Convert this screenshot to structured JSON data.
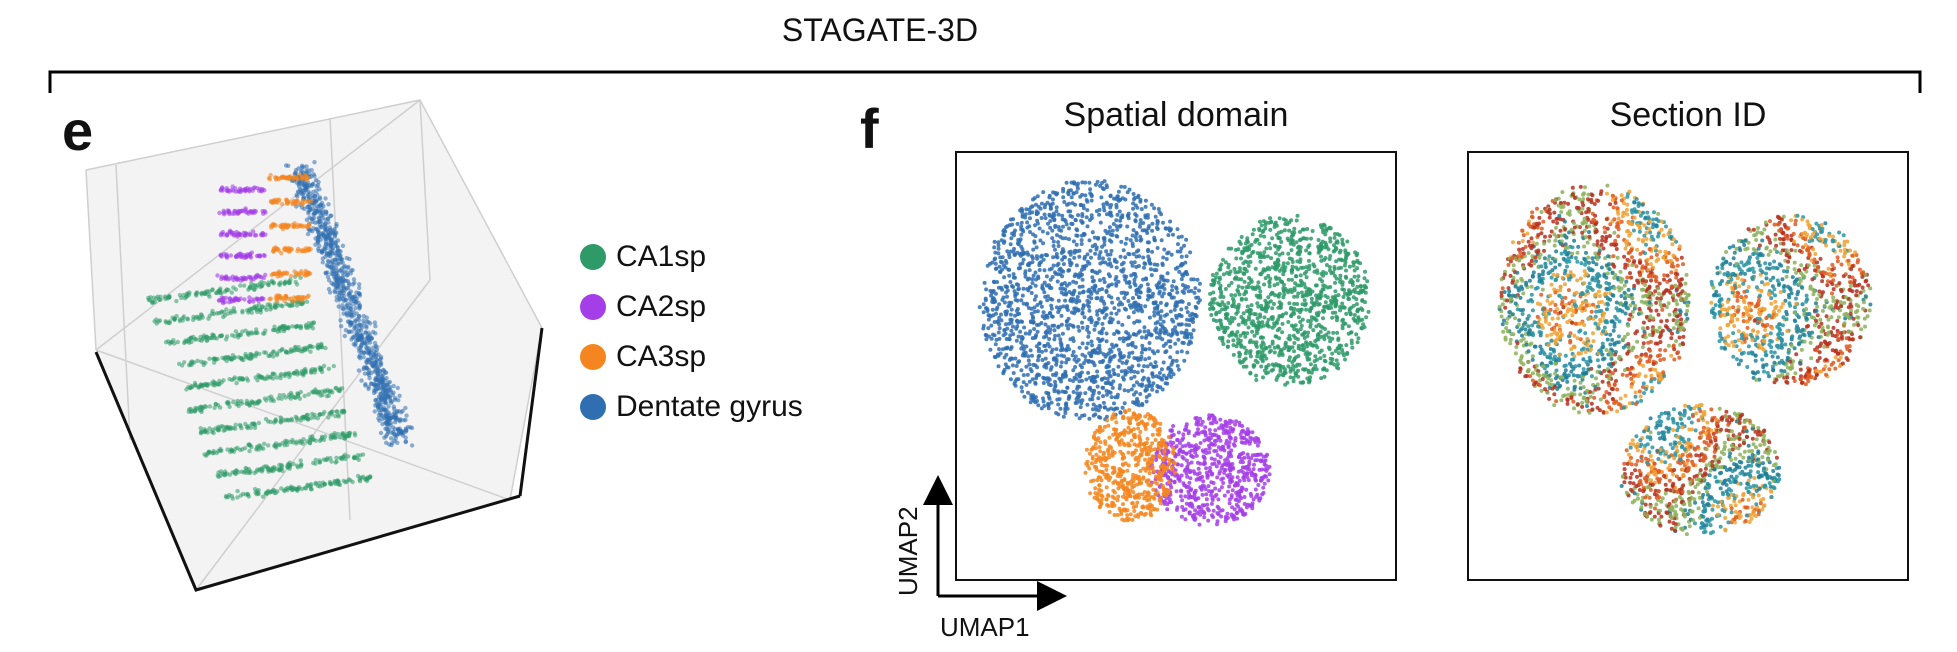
{
  "figure": {
    "title": "STAGATE-3D",
    "panel_e": "e",
    "panel_f": "f"
  },
  "chart_data": [
    {
      "type": "scatter",
      "panel": "e",
      "description_kind": "3d-scatter",
      "legend": [
        "CA1sp",
        "CA2sp",
        "CA3sp",
        "Dentate gyrus"
      ],
      "colors": {
        "CA1sp": "#2e9a68",
        "CA2sp": "#a43ee8",
        "CA3sp": "#f5861f",
        "Dentate gyrus": "#2f6fb1"
      },
      "grid": true
    },
    {
      "type": "scatter",
      "panel": "f",
      "title": "Spatial domain",
      "xlabel": "UMAP1",
      "ylabel": "UMAP2",
      "series": [
        {
          "name": "CA1sp",
          "color": "#2e9a68"
        },
        {
          "name": "CA2sp",
          "color": "#a43ee8"
        },
        {
          "name": "CA3sp",
          "color": "#f5861f"
        },
        {
          "name": "Dentate gyrus",
          "color": "#2f6fb1"
        }
      ]
    },
    {
      "type": "scatter",
      "panel": "f",
      "title": "Section ID",
      "palette": [
        "#b5301e",
        "#e0591e",
        "#f0a233",
        "#2a95a6",
        "#1f7f97",
        "#8cb25a"
      ]
    }
  ]
}
